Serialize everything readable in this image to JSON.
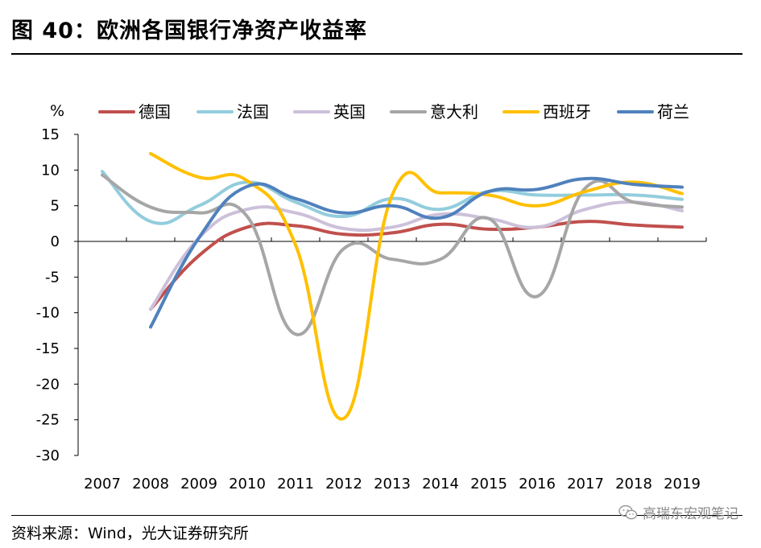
{
  "header": {
    "title": "图 40：欧洲各国银行净资产收益率"
  },
  "footer": {
    "source": "资料来源：Wind，光大证券研究所",
    "watermark": "高瑞东宏观笔记",
    "watermark_icon": "wechat-icon"
  },
  "chart_data": {
    "type": "line",
    "title": "欧洲各国银行净资产收益率",
    "ylabel": "%",
    "xlabel": "",
    "ylim": [
      -30,
      15
    ],
    "yticks": [
      15,
      10,
      5,
      0,
      -5,
      -10,
      -15,
      -20,
      -25,
      -30
    ],
    "categories": [
      "2007",
      "2008",
      "2009",
      "2010",
      "2011",
      "2012",
      "2013",
      "2014",
      "2015",
      "2016",
      "2017",
      "2018",
      "2019"
    ],
    "legend_position": "top",
    "grid": false,
    "series": [
      {
        "name": "德国",
        "color": "#C0504D",
        "x": [
          2008,
          2009,
          2010,
          2011,
          2012,
          2013,
          2014,
          2015,
          2016,
          2017,
          2018,
          2019
        ],
        "values": [
          -9.5,
          -2.0,
          2.0,
          2.2,
          1.0,
          1.2,
          2.4,
          1.7,
          2.0,
          2.8,
          2.3,
          2.0
        ]
      },
      {
        "name": "法国",
        "color": "#93CDDD",
        "x": [
          2007,
          2008,
          2009,
          2010,
          2011,
          2012,
          2013,
          2014,
          2015,
          2016,
          2017,
          2018,
          2019
        ],
        "values": [
          9.8,
          2.8,
          5.0,
          8.3,
          5.5,
          3.5,
          6.0,
          4.5,
          7.0,
          6.5,
          6.5,
          6.5,
          5.9
        ]
      },
      {
        "name": "英国",
        "color": "#CCC0DA",
        "x": [
          2008,
          2009,
          2010,
          2011,
          2012,
          2013,
          2014,
          2015,
          2016,
          2017,
          2018,
          2019
        ],
        "values": [
          -9.5,
          0.5,
          4.5,
          4.0,
          1.8,
          2.0,
          3.8,
          3.2,
          2.0,
          4.5,
          5.5,
          4.3
        ]
      },
      {
        "name": "意大利",
        "color": "#A6A6A6",
        "x": [
          2007,
          2008,
          2009,
          2010,
          2011,
          2012,
          2013,
          2014,
          2015,
          2016,
          2017,
          2018,
          2019
        ],
        "values": [
          9.3,
          4.8,
          4.0,
          3.5,
          -13.0,
          -1.0,
          -2.5,
          -2.5,
          3.2,
          -7.7,
          7.5,
          5.5,
          4.8
        ]
      },
      {
        "name": "西班牙",
        "color": "#FFC000",
        "x": [
          2008,
          2009,
          2010,
          2011,
          2012,
          2013,
          2014,
          2015,
          2016,
          2017,
          2018,
          2019
        ],
        "values": [
          12.3,
          9.0,
          8.5,
          -0.5,
          -24.8,
          6.5,
          6.8,
          6.5,
          5.0,
          7.0,
          8.3,
          6.7
        ]
      },
      {
        "name": "荷兰",
        "color": "#4F81BD",
        "x": [
          2008,
          2009,
          2010,
          2011,
          2012,
          2013,
          2014,
          2015,
          2016,
          2017,
          2018,
          2019
        ],
        "values": [
          -12.0,
          0.5,
          7.7,
          6.0,
          4.0,
          5.0,
          3.3,
          7.0,
          7.3,
          8.8,
          8.0,
          7.6
        ]
      }
    ]
  }
}
